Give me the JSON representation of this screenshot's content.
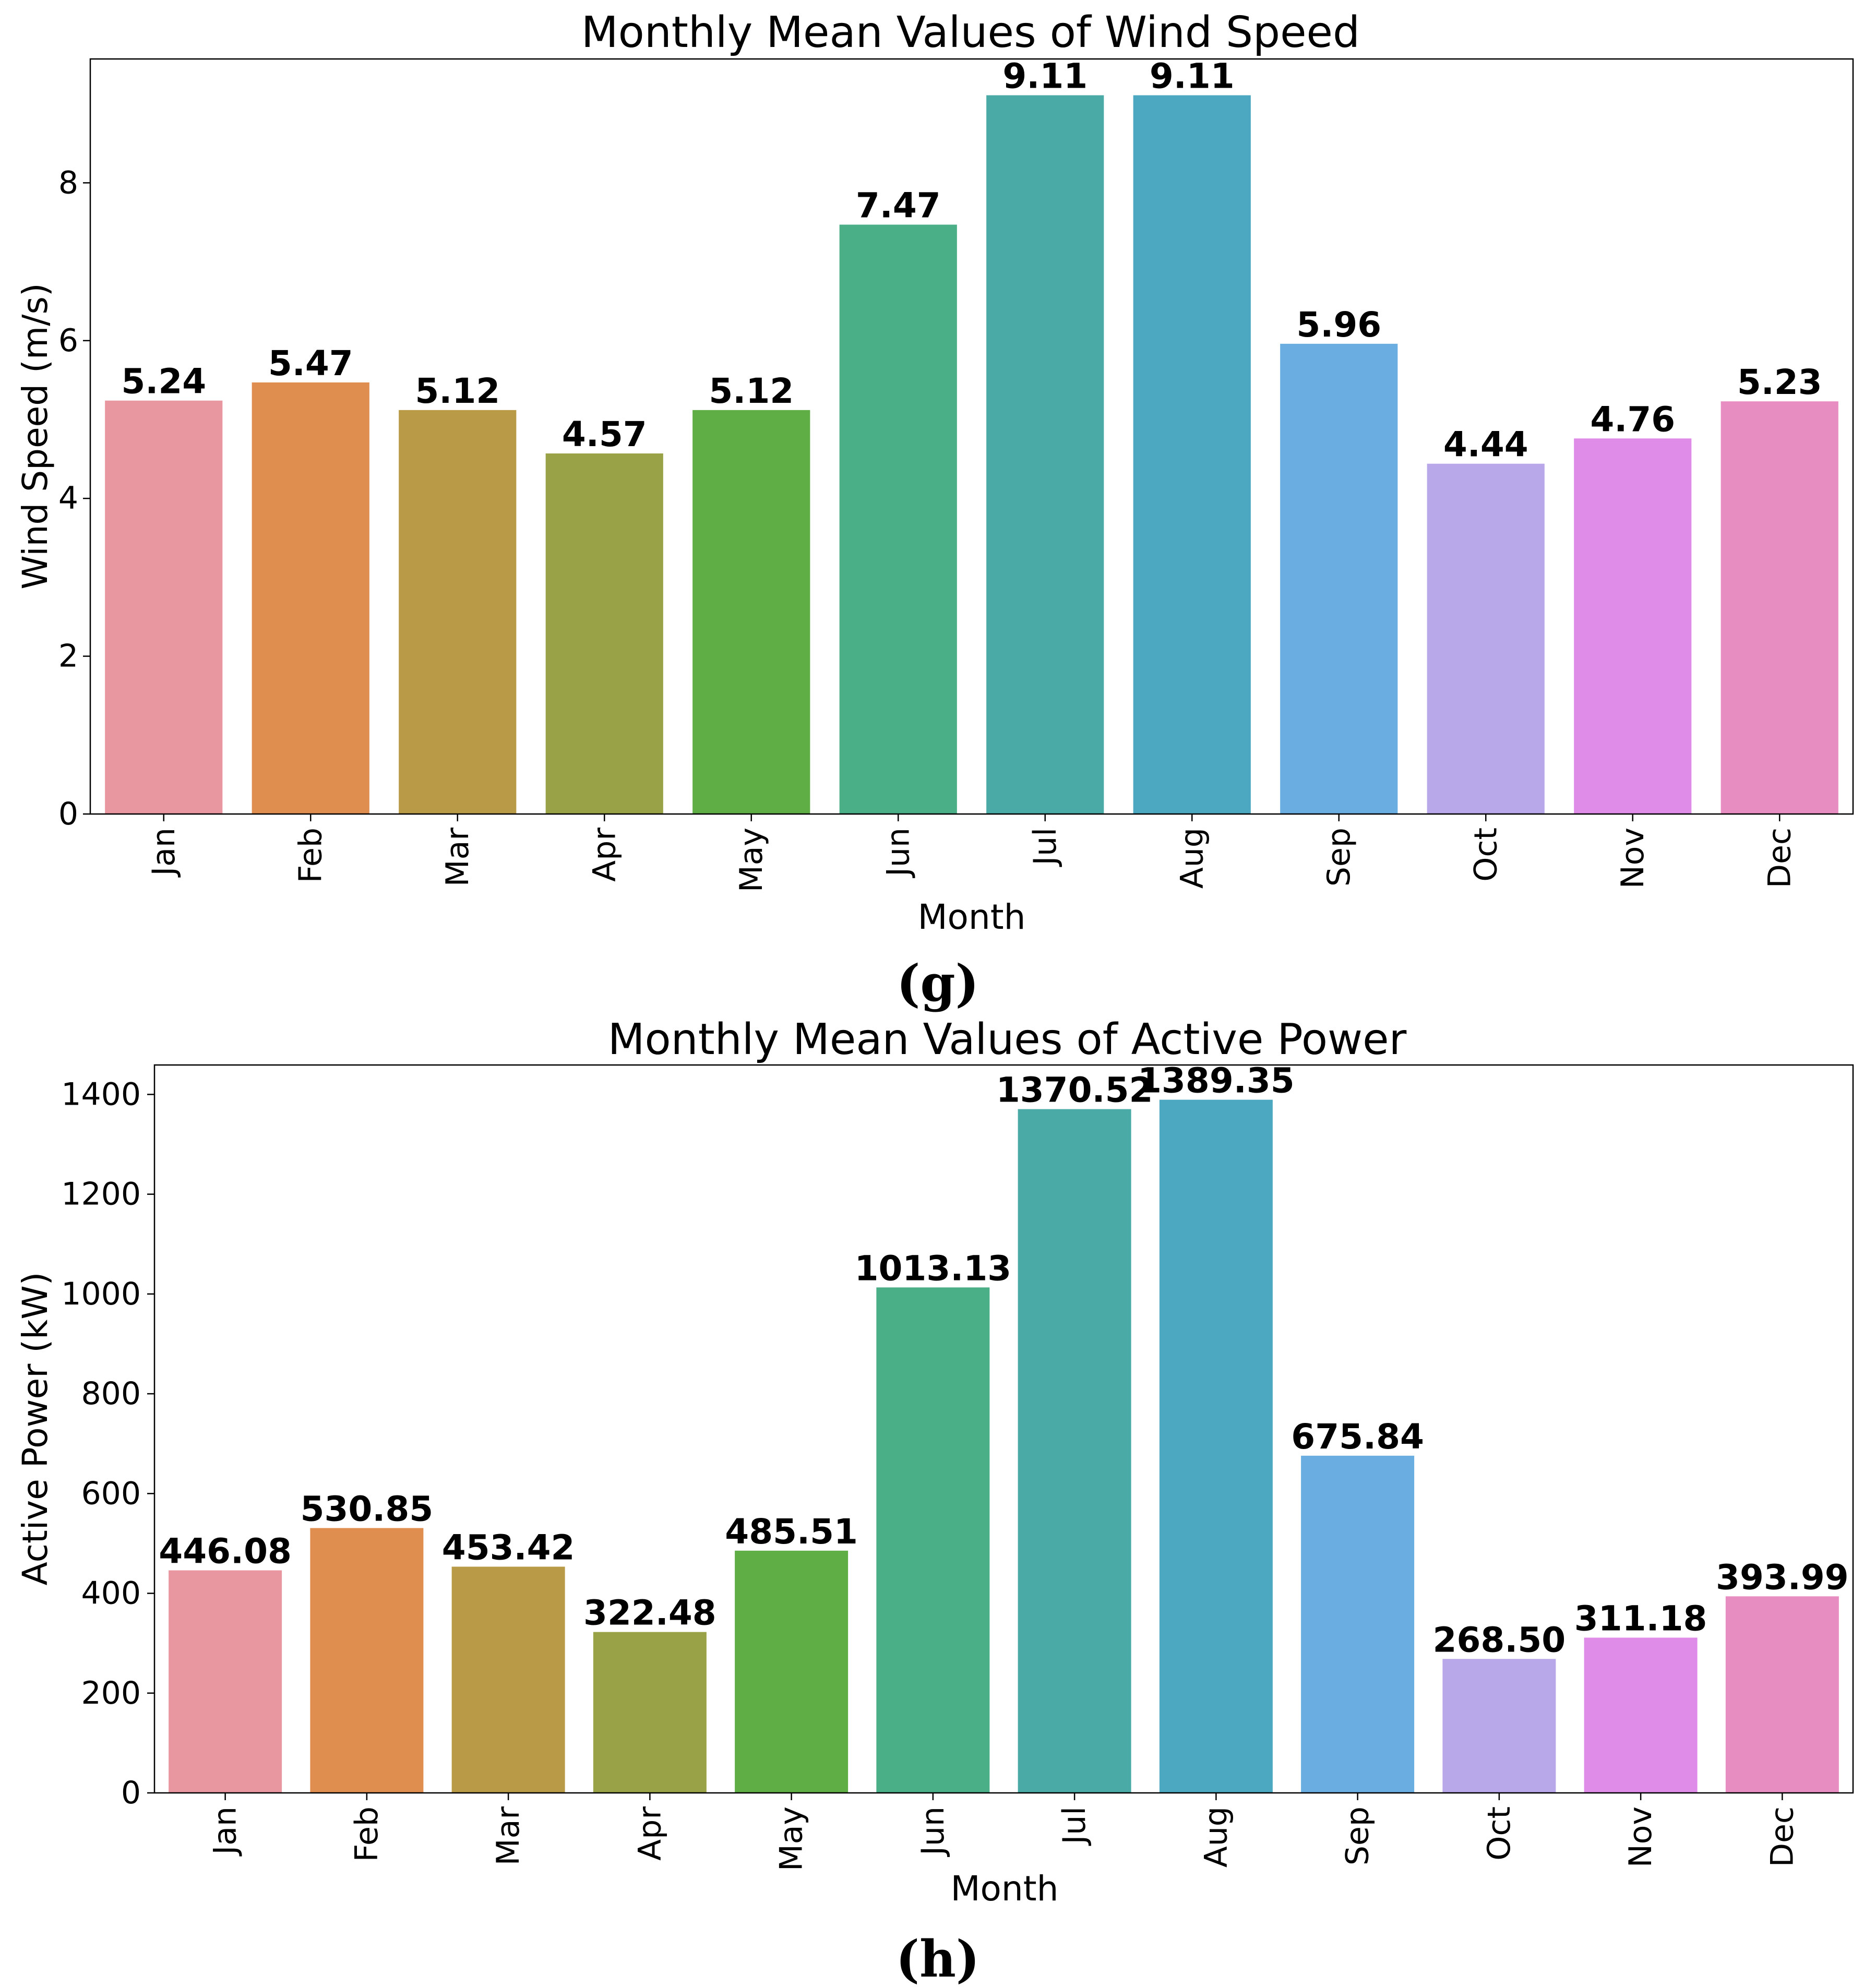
{
  "colors": [
    "#e8969f",
    "#e08e50",
    "#b99b47",
    "#99a246",
    "#5fad45",
    "#4aae87",
    "#4aaaa6",
    "#4ca8c0",
    "#6aaee1",
    "#b9a8e9",
    "#df8ce8",
    "#e88dc2"
  ],
  "chart_data": [
    {
      "type": "bar",
      "title": "Monthly Mean Values of Wind Speed",
      "xlabel": "Month",
      "ylabel": "Wind Speed (m/s)",
      "categories": [
        "Jan",
        "Feb",
        "Mar",
        "Apr",
        "May",
        "Jun",
        "Jul",
        "Aug",
        "Sep",
        "Oct",
        "Nov",
        "Dec"
      ],
      "values": [
        5.24,
        5.47,
        5.12,
        4.57,
        5.12,
        7.47,
        9.11,
        9.11,
        5.96,
        4.44,
        4.76,
        5.23
      ],
      "data_labels": [
        "5.24",
        "5.47",
        "5.12",
        "4.57",
        "5.12",
        "7.47",
        "9.11",
        "9.11",
        "5.96",
        "4.44",
        "4.76",
        "5.23"
      ],
      "ylim": [
        0,
        9.57
      ],
      "yticks": [
        0,
        2,
        4,
        6,
        8
      ],
      "ytick_labels": [
        "0",
        "2",
        "4",
        "6",
        "8"
      ],
      "grid": false,
      "panel_label": "(g)"
    },
    {
      "type": "bar",
      "title": "Monthly Mean Values of Active Power",
      "xlabel": "Month",
      "ylabel": "Active Power (kW)",
      "categories": [
        "Jan",
        "Feb",
        "Mar",
        "Apr",
        "May",
        "Jun",
        "Jul",
        "Aug",
        "Sep",
        "Oct",
        "Nov",
        "Dec"
      ],
      "values": [
        446.08,
        530.85,
        453.42,
        322.48,
        485.51,
        1013.13,
        1370.52,
        1389.35,
        675.84,
        268.5,
        311.18,
        393.99
      ],
      "data_labels": [
        "446.08",
        "530.85",
        "453.42",
        "322.48",
        "485.51",
        "1013.13",
        "1370.52",
        "1389.35",
        "675.84",
        "268.50",
        "311.18",
        "393.99"
      ],
      "ylim": [
        0,
        1459
      ],
      "yticks": [
        0,
        200,
        400,
        600,
        800,
        1000,
        1200,
        1400
      ],
      "ytick_labels": [
        "0",
        "200",
        "400",
        "600",
        "800",
        "1000",
        "1200",
        "1400"
      ],
      "grid": false,
      "panel_label": "(h)"
    }
  ]
}
